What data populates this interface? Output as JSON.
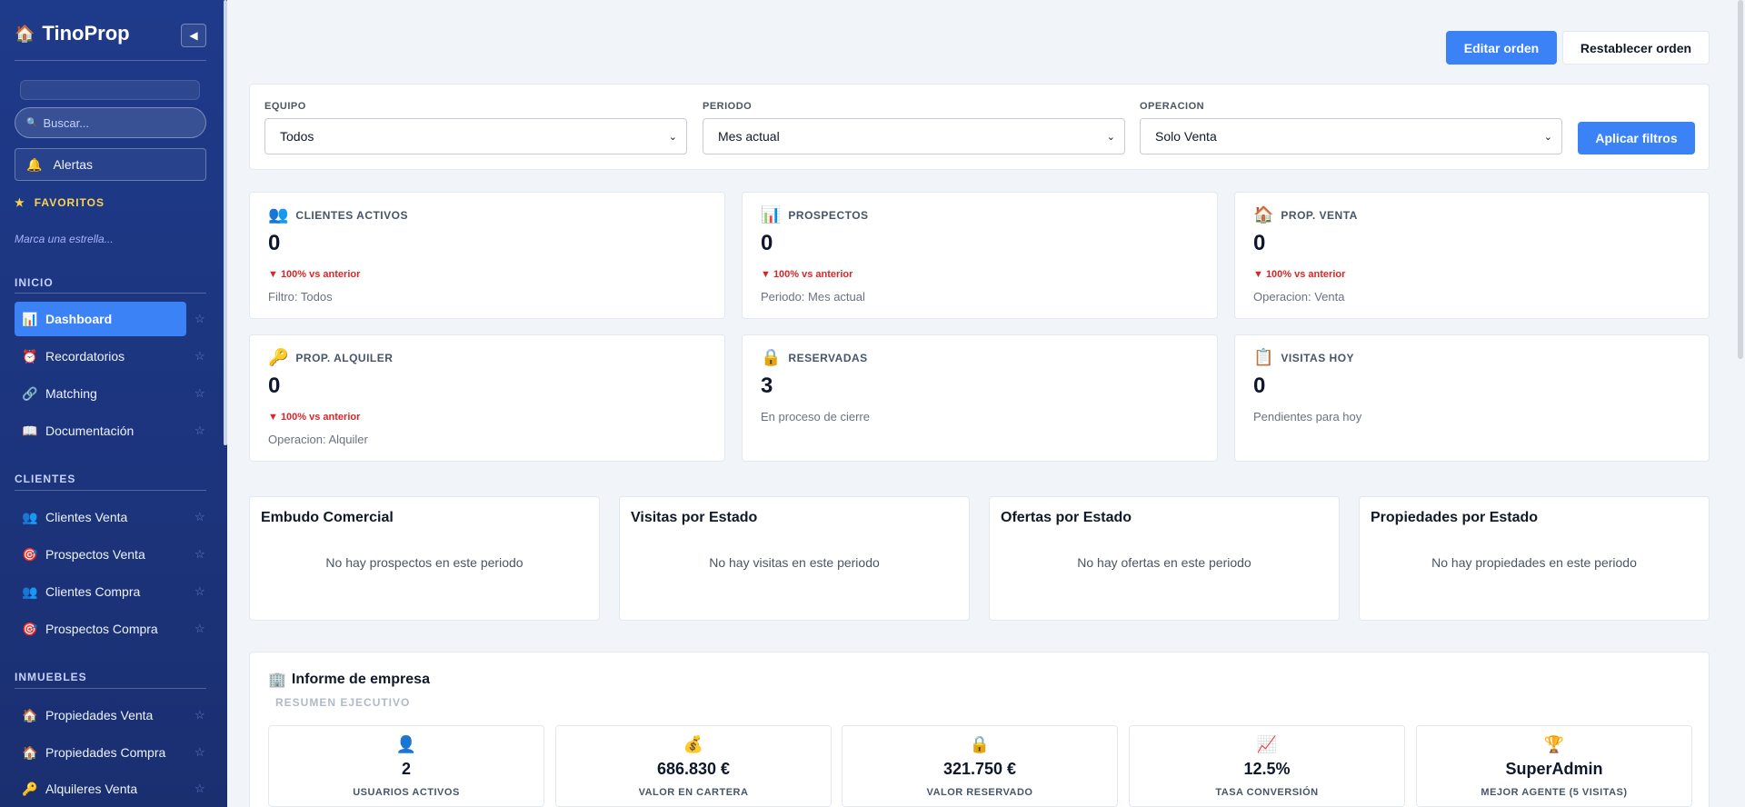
{
  "sidebar": {
    "brand_icon": "house-icon",
    "brand": "TinoProp",
    "collapse_icon": "◀",
    "search_placeholder": "Buscar...",
    "alerts_label": "Alertas",
    "favorites_title": "FAVORITOS",
    "favorites_hint": "Marca una estrella...",
    "sections": {
      "inicio": "INICIO",
      "clientes": "CLIENTES",
      "inmuebles": "INMUEBLES"
    },
    "items": [
      {
        "label": "Dashboard",
        "icon": "📊",
        "active": true
      },
      {
        "label": "Recordatorios",
        "icon": "⏰"
      },
      {
        "label": "Matching",
        "icon": "🔗"
      },
      {
        "label": "Documentación",
        "icon": "📖"
      },
      {
        "label": "Clientes Venta",
        "icon": "👥"
      },
      {
        "label": "Prospectos Venta",
        "icon": "🎯"
      },
      {
        "label": "Clientes Compra",
        "icon": "👥"
      },
      {
        "label": "Prospectos Compra",
        "icon": "🎯"
      },
      {
        "label": "Propiedades Venta",
        "icon": "🏠"
      },
      {
        "label": "Propiedades Compra",
        "icon": "🏠"
      },
      {
        "label": "Alquileres Venta",
        "icon": "🔑"
      }
    ]
  },
  "toolbar": {
    "edit_order": "Editar orden",
    "reset_order": "Restablecer orden"
  },
  "filters": {
    "equipo_label": "EQUIPO",
    "equipo_value": "Todos",
    "periodo_label": "PERIODO",
    "periodo_value": "Mes actual",
    "operacion_label": "OPERACION",
    "operacion_value": "Solo Venta",
    "apply": "Aplicar filtros"
  },
  "stats": [
    {
      "icon": "👥",
      "label": "CLIENTES ACTIVOS",
      "value": "0",
      "delta": "▼ 100% vs anterior",
      "sub": "Filtro: Todos"
    },
    {
      "icon": "📊",
      "label": "PROSPECTOS",
      "value": "0",
      "delta": "▼ 100% vs anterior",
      "sub": "Periodo: Mes actual"
    },
    {
      "icon": "🏠",
      "label": "PROP. VENTA",
      "value": "0",
      "delta": "▼ 100% vs anterior",
      "sub": "Operacion: Venta"
    },
    {
      "icon": "🔑",
      "label": "PROP. ALQUILER",
      "value": "0",
      "delta": "▼ 100% vs anterior",
      "sub": "Operacion: Alquiler"
    },
    {
      "icon": "🔒",
      "label": "RESERVADAS",
      "value": "3",
      "delta": "",
      "sub": "En proceso de cierre"
    },
    {
      "icon": "📋",
      "label": "VISITAS HOY",
      "value": "0",
      "delta": "",
      "sub": "Pendientes para hoy"
    }
  ],
  "panels": [
    {
      "title": "Embudo Comercial",
      "empty": "No hay prospectos en este periodo"
    },
    {
      "title": "Visitas por Estado",
      "empty": "No hay visitas en este periodo"
    },
    {
      "title": "Ofertas por Estado",
      "empty": "No hay ofertas en este periodo"
    },
    {
      "title": "Propiedades por Estado",
      "empty": "No hay propiedades en este periodo"
    }
  ],
  "report": {
    "icon": "🏢",
    "title": "Informe de empresa",
    "subtitle": "RESUMEN EJECUTIVO",
    "kpis": [
      {
        "icon": "👤",
        "value": "2",
        "label": "USUARIOS ACTIVOS"
      },
      {
        "icon": "💰",
        "value": "686.830 €",
        "label": "VALOR EN CARTERA"
      },
      {
        "icon": "🔒",
        "value": "321.750 €",
        "label": "VALOR RESERVADO"
      },
      {
        "icon": "📈",
        "value": "12.5%",
        "label": "TASA CONVERSIÓN"
      },
      {
        "icon": "🏆",
        "value": "SuperAdmin",
        "label": "MEJOR AGENTE (5 VISITAS)"
      }
    ]
  },
  "colors": {
    "sidebar": "#1e3a8a",
    "accent": "#3b82f6",
    "negative": "#dc2626"
  }
}
